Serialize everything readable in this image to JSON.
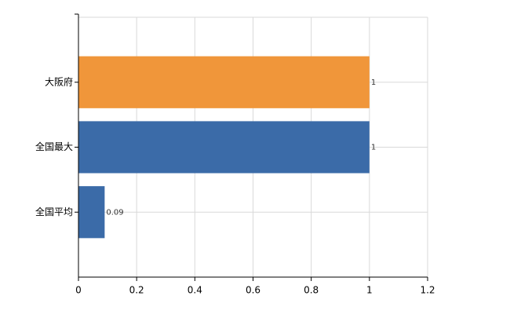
{
  "chart_data": {
    "type": "hbar",
    "categories": [
      "大阪府",
      "全国最大",
      "全国平均"
    ],
    "values": [
      1,
      1,
      0.09
    ],
    "colors": [
      "#f0963a",
      "#3b6ba8",
      "#3b6ba8"
    ],
    "xlim": [
      0,
      1.2
    ],
    "xticks": [
      0,
      0.2,
      0.4,
      0.6,
      0.8,
      1,
      1.2
    ],
    "grid": true
  }
}
